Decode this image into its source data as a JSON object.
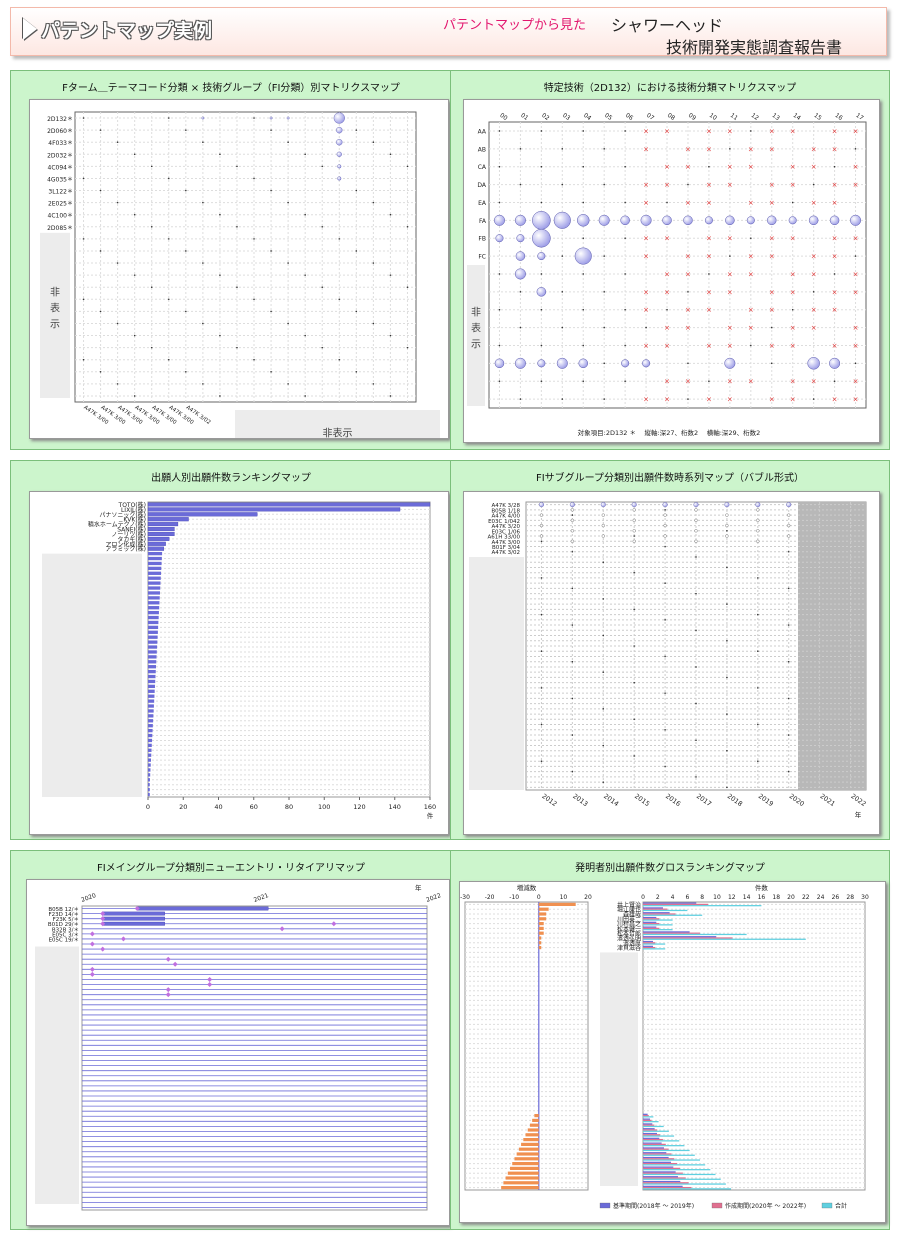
{
  "header": {
    "title": "パテントマップ実例",
    "subtitle": "パテントマップから見た",
    "report_line1": "シャワーヘッド",
    "report_line2": "技術開発実態調査報告書"
  },
  "hidden_label": {
    "vertical": "非表示",
    "horizontal": "非表示"
  },
  "colors": {
    "bubble": "#9a9ae6",
    "cross": "#e03030",
    "bar_blue": "#6b6bd8",
    "bar_pink": "#e07090",
    "bar_cyan": "#60d0e0",
    "bar_orange": "#f09050",
    "panel_bg": "#ccf5cc"
  },
  "panels": {
    "p1": {
      "title": "Fターム＿テーマコード分類 × 技術グループ（FI分類）別マトリクスマップ"
    },
    "p2": {
      "title": "特定技術（2D132）における技術分類マトリクスマップ",
      "footer": "対象項目:2D132 ＊　 縦軸:深27、桁数2　 横軸:深29、桁数2"
    },
    "p3": {
      "title": "出願人別出願件数ランキングマップ"
    },
    "p4": {
      "title": "FIサブグループ分類別出願件数時系列マップ（バブル形式）"
    },
    "p5": {
      "title": "FIメイングループ分類別ニューエントリ・リタイアリマップ"
    },
    "p6": {
      "title": "発明者別出願件数グロスランキングマップ"
    }
  },
  "chart_data": [
    {
      "type": "scatter",
      "id": "fterm-matrix",
      "title": "Fターム＿テーマコード分類 × 技術グループ（FI分類）別マトリクスマップ",
      "y_categories": [
        "2D132＊",
        "2D060＊",
        "4F033＊",
        "2D032＊",
        "4C094＊",
        "4G035＊",
        "3L122＊",
        "2E025＊",
        "4C100＊",
        "2D085＊"
      ],
      "x_categories": [
        "A47K 3/00",
        "A47K 3/00",
        "A47K 3/00",
        "A47K 3/00",
        "A47K 3/00",
        "A47K 3/00",
        "A47K 3/02"
      ],
      "x_letters": [
        "B",
        "D",
        "E",
        "F",
        "K",
        "Q",
        "Z"
      ],
      "bubbles": [
        {
          "x": 15,
          "y": 0,
          "size": 9
        },
        {
          "x": 15,
          "y": 1,
          "size": 5
        },
        {
          "x": 15,
          "y": 2,
          "size": 5
        },
        {
          "x": 15,
          "y": 3,
          "size": 4
        },
        {
          "x": 15,
          "y": 4,
          "size": 3
        },
        {
          "x": 15,
          "y": 5,
          "size": 3
        },
        {
          "x": 7,
          "y": 0,
          "size": 2
        },
        {
          "x": 11,
          "y": 0,
          "size": 2
        },
        {
          "x": 12,
          "y": 0,
          "size": 2
        }
      ]
    },
    {
      "type": "scatter",
      "id": "2d132-matrix",
      "title": "特定技術（2D132）における技術分類マトリクスマップ",
      "x_categories": [
        "00",
        "01",
        "02",
        "03",
        "04",
        "05",
        "06",
        "07",
        "08",
        "09",
        "10",
        "11",
        "12",
        "13",
        "14",
        "15",
        "16",
        "17"
      ],
      "y_categories": [
        "AA",
        "AB",
        "CA",
        "DA",
        "EA",
        "FA",
        "FB",
        "FC"
      ],
      "big_bubbles": [
        {
          "x": 0,
          "y": 5,
          "size": 7
        },
        {
          "x": 1,
          "y": 5,
          "size": 7
        },
        {
          "x": 2,
          "y": 5,
          "size": 12
        },
        {
          "x": 3,
          "y": 5,
          "size": 11
        },
        {
          "x": 4,
          "y": 5,
          "size": 8
        },
        {
          "x": 5,
          "y": 5,
          "size": 7
        },
        {
          "x": 6,
          "y": 5,
          "size": 6
        },
        {
          "x": 7,
          "y": 5,
          "size": 7
        },
        {
          "x": 8,
          "y": 5,
          "size": 6
        },
        {
          "x": 9,
          "y": 5,
          "size": 6
        },
        {
          "x": 10,
          "y": 5,
          "size": 5
        },
        {
          "x": 11,
          "y": 5,
          "size": 6
        },
        {
          "x": 12,
          "y": 5,
          "size": 5
        },
        {
          "x": 13,
          "y": 5,
          "size": 6
        },
        {
          "x": 14,
          "y": 5,
          "size": 5
        },
        {
          "x": 15,
          "y": 5,
          "size": 6
        },
        {
          "x": 16,
          "y": 5,
          "size": 6
        },
        {
          "x": 17,
          "y": 5,
          "size": 7
        },
        {
          "x": 2,
          "y": 6,
          "size": 12
        },
        {
          "x": 1,
          "y": 6,
          "size": 5
        },
        {
          "x": 0,
          "y": 6,
          "size": 5
        },
        {
          "x": 4,
          "y": 7,
          "size": 11
        },
        {
          "x": 1,
          "y": 8,
          "size": 7
        },
        {
          "x": 2,
          "y": 9,
          "size": 6
        },
        {
          "x": 2,
          "y": 7,
          "size": 5
        },
        {
          "x": 1,
          "y": 7,
          "size": 6
        },
        {
          "x": 0,
          "y": 13,
          "size": 6
        },
        {
          "x": 1,
          "y": 13,
          "size": 7
        },
        {
          "x": 2,
          "y": 13,
          "size": 5
        },
        {
          "x": 3,
          "y": 13,
          "size": 7
        },
        {
          "x": 4,
          "y": 13,
          "size": 6
        },
        {
          "x": 6,
          "y": 13,
          "size": 5
        },
        {
          "x": 7,
          "y": 13,
          "size": 5
        },
        {
          "x": 11,
          "y": 13,
          "size": 7
        },
        {
          "x": 15,
          "y": 13,
          "size": 8
        },
        {
          "x": 16,
          "y": 13,
          "size": 7
        }
      ]
    },
    {
      "type": "bar",
      "id": "applicant-ranking",
      "title": "出願人別出願件数ランキングマップ",
      "categories": [
        "TOTO(株)",
        "LIXIL(株)",
        "パナソニック(株)",
        "KVK(株)",
        "積水ホームテクノ(株)",
        "SANEI(株)",
        "ノーリツ(株)",
        "タカギ(株)",
        "アロン化成(株)",
        "アラミック(株)"
      ],
      "values": [
        160,
        143,
        62,
        23,
        17,
        15,
        15,
        12,
        10,
        9
      ],
      "xlim": [
        0,
        160
      ],
      "xlabel": "件",
      "xticks": [
        "0",
        "20",
        "40",
        "60",
        "80",
        "100",
        "120",
        "140",
        "160"
      ]
    },
    {
      "type": "scatter",
      "id": "fi-subgroup-timeseries",
      "title": "FIサブグループ分類別出願件数時系列マップ（バブル形式）",
      "categories": [
        "A47K 3/28",
        "B05B 1/18",
        "A47K 4/00",
        "E03C 1/042",
        "A47K 3/20",
        "E03C 1/06",
        "A61H 33/00",
        "A47K 3/00",
        "B01F 3/04",
        "A47K 3/02"
      ],
      "years": [
        "2012",
        "2013",
        "2014",
        "2015",
        "2016",
        "2017",
        "2018",
        "2019",
        "2020",
        "2021",
        "2022"
      ],
      "xlabel": "年"
    },
    {
      "type": "bar",
      "id": "fi-newentry-retire",
      "title": "FIメイングループ分類別ニューエントリ・リタイアリマップ",
      "categories": [
        "B05B 12/＊",
        "F23D 14/＊",
        "F23K 5/＊",
        "B01D 29/＊",
        "B32B 3/＊",
        "E05C 3/＊",
        "E05C 19/＊"
      ],
      "years": [
        "2020",
        "2021",
        "2022"
      ],
      "xlabel": "年"
    },
    {
      "type": "bar",
      "id": "inventor-ranking",
      "title": "発明者別出願件数グロスランキングマップ",
      "categories": [
        "井上賢治",
        "堀江康也",
        "森雄哉",
        "川田英二",
        "川村昌之",
        "松本健一",
        "松本哲郎",
        "濱透弘明",
        "濱透厚",
        "津貝滋谷"
      ],
      "left_label": "増減数",
      "left_ticks": [
        "-30",
        "-20",
        "-10",
        "0",
        "10",
        "20"
      ],
      "right_label": "件数",
      "right_ticks": [
        "0",
        "2",
        "4",
        "6",
        "8",
        "10",
        "12",
        "14",
        "16",
        "18",
        "20",
        "22",
        "24",
        "26",
        "28",
        "30"
      ],
      "series": [
        {
          "name": "基準期間(2018年 ～ 2019年)"
        },
        {
          "name": "作成期間(2020年 ～ 2022年)"
        },
        {
          "name": "合計"
        }
      ],
      "diff_values": [
        15,
        4,
        3,
        3,
        2,
        2,
        2,
        1,
        1,
        1
      ],
      "totals": [
        16,
        6,
        8,
        4,
        4,
        4,
        14,
        22,
        3,
        3
      ]
    }
  ]
}
